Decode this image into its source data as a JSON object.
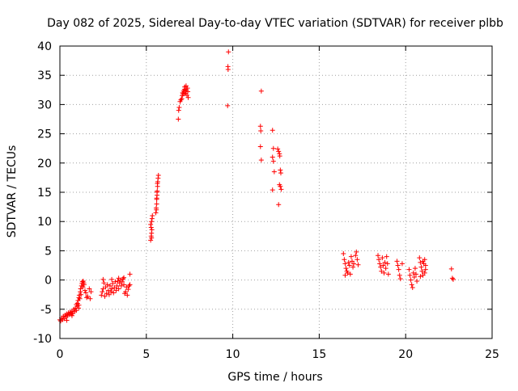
{
  "chart_data": {
    "type": "scatter",
    "title": "Day 082 of 2025, Sidereal Day-to-day VTEC variation (SDTVAR) for receiver plbb",
    "xlabel": "GPS time / hours",
    "ylabel": "SDTVAR / TECUs",
    "xlim": [
      0,
      25
    ],
    "ylim": [
      -10,
      40
    ],
    "xticks": [
      0,
      5,
      10,
      15,
      20,
      25
    ],
    "yticks": [
      -10,
      -5,
      0,
      5,
      10,
      15,
      20,
      25,
      30,
      35,
      40
    ],
    "xtick_labels": [
      "0",
      "5",
      "10",
      "15",
      "20",
      "25"
    ],
    "ytick_labels": [
      "-10",
      "-5",
      "0",
      "5",
      "10",
      "15",
      "20",
      "25",
      "30",
      "35",
      "40"
    ],
    "grid": true,
    "marker": "+",
    "colors": {
      "marker": "#ff0000",
      "grid": "#a0a0a0",
      "axis": "#000000",
      "background": "#ffffff"
    },
    "series": [
      {
        "name": "SDTVAR plbb",
        "points": [
          [
            0.0,
            -6.8
          ],
          [
            0.05,
            -7.0
          ],
          [
            0.1,
            -6.5
          ],
          [
            0.15,
            -6.8
          ],
          [
            0.2,
            -6.2
          ],
          [
            0.25,
            -6.6
          ],
          [
            0.3,
            -6.0
          ],
          [
            0.35,
            -6.3
          ],
          [
            0.4,
            -5.8
          ],
          [
            0.45,
            -6.1
          ],
          [
            0.5,
            -5.6
          ],
          [
            0.55,
            -5.9
          ],
          [
            0.6,
            -5.5
          ],
          [
            0.65,
            -5.8
          ],
          [
            0.7,
            -5.3
          ],
          [
            0.75,
            -5.7
          ],
          [
            0.8,
            -5.0
          ],
          [
            0.85,
            -5.4
          ],
          [
            0.9,
            -4.8
          ],
          [
            0.95,
            -5.2
          ],
          [
            1.0,
            -4.5
          ],
          [
            1.02,
            -4.0
          ],
          [
            1.05,
            -3.5
          ],
          [
            1.08,
            -4.8
          ],
          [
            1.1,
            -3.0
          ],
          [
            1.12,
            -2.6
          ],
          [
            1.15,
            -3.2
          ],
          [
            1.18,
            -2.0
          ],
          [
            1.2,
            -1.5
          ],
          [
            1.22,
            -2.5
          ],
          [
            1.25,
            -1.0
          ],
          [
            1.28,
            -0.6
          ],
          [
            1.3,
            -0.3
          ],
          [
            1.33,
            -1.2
          ],
          [
            1.35,
            -0.2
          ],
          [
            1.38,
            -0.5
          ],
          [
            1.4,
            -0.8
          ],
          [
            1.45,
            -1.8
          ],
          [
            1.5,
            -2.2
          ],
          [
            1.55,
            -3.0
          ],
          [
            1.6,
            -2.8
          ],
          [
            1.7,
            -1.5
          ],
          [
            1.75,
            -3.2
          ],
          [
            1.8,
            -2.0
          ],
          [
            0.4,
            -6.9
          ],
          [
            0.7,
            -6.1
          ],
          [
            0.95,
            -4.2
          ],
          [
            1.1,
            -4.3
          ],
          [
            2.4,
            -2.6
          ],
          [
            2.45,
            -2.0
          ],
          [
            2.5,
            -1.5
          ],
          [
            2.55,
            -0.5
          ],
          [
            2.6,
            -2.8
          ],
          [
            2.65,
            -1.2
          ],
          [
            2.7,
            -2.3
          ],
          [
            2.75,
            -0.8
          ],
          [
            2.8,
            -1.8
          ],
          [
            2.85,
            -2.5
          ],
          [
            2.9,
            -1.0
          ],
          [
            2.95,
            -2.0
          ],
          [
            3.0,
            -1.5
          ],
          [
            3.05,
            -0.6
          ],
          [
            3.1,
            -2.2
          ],
          [
            3.15,
            -1.3
          ],
          [
            3.2,
            -0.3
          ],
          [
            3.25,
            -1.8
          ],
          [
            3.3,
            -1.0
          ],
          [
            3.35,
            -0.2
          ],
          [
            3.4,
            -1.5
          ],
          [
            3.45,
            -0.5
          ],
          [
            3.5,
            0.0
          ],
          [
            3.55,
            -1.0
          ],
          [
            3.6,
            -0.3
          ],
          [
            3.65,
            0.2
          ],
          [
            3.7,
            -0.8
          ],
          [
            3.75,
            -2.3
          ],
          [
            3.8,
            -2.0
          ],
          [
            3.85,
            -1.2
          ],
          [
            3.9,
            -2.6
          ],
          [
            3.95,
            -1.6
          ],
          [
            4.0,
            -1.0
          ],
          [
            4.05,
            -0.8
          ],
          [
            2.5,
            0.1
          ],
          [
            3.0,
            0.1
          ],
          [
            3.4,
            0.3
          ],
          [
            3.7,
            0.4
          ],
          [
            4.05,
            1.0
          ],
          [
            5.25,
            6.8
          ],
          [
            5.28,
            7.5
          ],
          [
            5.3,
            8.0
          ],
          [
            5.32,
            8.6
          ],
          [
            5.25,
            9.5
          ],
          [
            5.3,
            10.0
          ],
          [
            5.33,
            10.5
          ],
          [
            5.35,
            11.0
          ],
          [
            5.28,
            9.0
          ],
          [
            5.3,
            7.2
          ],
          [
            5.55,
            11.5
          ],
          [
            5.57,
            12.3
          ],
          [
            5.6,
            13.0
          ],
          [
            5.6,
            13.8
          ],
          [
            5.62,
            14.5
          ],
          [
            5.63,
            15.2
          ],
          [
            5.65,
            16.0
          ],
          [
            5.66,
            16.8
          ],
          [
            5.68,
            17.4
          ],
          [
            5.7,
            17.9
          ],
          [
            5.58,
            12.0
          ],
          [
            5.6,
            14.0
          ],
          [
            5.62,
            15.0
          ],
          [
            5.64,
            16.5
          ],
          [
            6.85,
            27.5
          ],
          [
            6.87,
            29.0
          ],
          [
            6.9,
            29.5
          ],
          [
            6.95,
            30.5
          ],
          [
            7.0,
            30.8
          ],
          [
            7.05,
            31.0
          ],
          [
            7.08,
            31.5
          ],
          [
            7.1,
            32.0
          ],
          [
            7.12,
            31.8
          ],
          [
            7.15,
            32.3
          ],
          [
            7.18,
            32.0
          ],
          [
            7.2,
            32.6
          ],
          [
            7.22,
            33.0
          ],
          [
            7.25,
            32.4
          ],
          [
            7.28,
            31.9
          ],
          [
            7.3,
            33.2
          ],
          [
            7.32,
            32.5
          ],
          [
            7.35,
            31.6
          ],
          [
            7.38,
            32.8
          ],
          [
            7.4,
            32.2
          ],
          [
            7.42,
            31.2
          ],
          [
            9.75,
            39.0
          ],
          [
            9.72,
            36.5
          ],
          [
            9.73,
            36.0
          ],
          [
            9.7,
            29.8
          ],
          [
            11.65,
            32.3
          ],
          [
            11.6,
            26.3
          ],
          [
            11.62,
            25.5
          ],
          [
            11.6,
            22.8
          ],
          [
            11.65,
            20.5
          ],
          [
            12.3,
            25.6
          ],
          [
            12.35,
            22.5
          ],
          [
            12.3,
            21.0
          ],
          [
            12.35,
            20.3
          ],
          [
            12.4,
            18.5
          ],
          [
            12.3,
            15.4
          ],
          [
            12.6,
            22.4
          ],
          [
            12.65,
            22.0
          ],
          [
            12.7,
            21.6
          ],
          [
            12.72,
            21.2
          ],
          [
            12.75,
            18.8
          ],
          [
            12.78,
            18.3
          ],
          [
            12.7,
            16.3
          ],
          [
            12.75,
            16.0
          ],
          [
            12.8,
            15.5
          ],
          [
            12.65,
            12.9
          ],
          [
            16.4,
            4.5
          ],
          [
            16.45,
            3.5
          ],
          [
            16.5,
            2.8
          ],
          [
            16.55,
            2.0
          ],
          [
            16.6,
            1.5
          ],
          [
            16.65,
            1.2
          ],
          [
            16.7,
            3.0
          ],
          [
            16.75,
            2.5
          ],
          [
            16.8,
            1.0
          ],
          [
            16.85,
            4.0
          ],
          [
            16.9,
            3.2
          ],
          [
            16.95,
            2.2
          ],
          [
            17.0,
            2.8
          ],
          [
            17.1,
            4.2
          ],
          [
            17.15,
            4.8
          ],
          [
            17.2,
            3.5
          ],
          [
            17.25,
            2.6
          ],
          [
            16.5,
            0.8
          ],
          [
            18.4,
            4.2
          ],
          [
            18.45,
            3.5
          ],
          [
            18.5,
            2.8
          ],
          [
            18.55,
            2.2
          ],
          [
            18.6,
            1.5
          ],
          [
            18.65,
            3.8
          ],
          [
            18.7,
            2.5
          ],
          [
            18.75,
            1.2
          ],
          [
            18.8,
            3.0
          ],
          [
            18.85,
            2.0
          ],
          [
            18.9,
            4.0
          ],
          [
            18.95,
            2.8
          ],
          [
            19.0,
            1.0
          ],
          [
            19.5,
            3.2
          ],
          [
            19.55,
            2.5
          ],
          [
            19.6,
            1.8
          ],
          [
            19.65,
            0.8
          ],
          [
            19.7,
            0.2
          ],
          [
            19.8,
            2.8
          ],
          [
            20.2,
            1.8
          ],
          [
            20.25,
            0.8
          ],
          [
            20.3,
            0.0
          ],
          [
            20.35,
            -0.8
          ],
          [
            20.4,
            -1.3
          ],
          [
            20.45,
            1.2
          ],
          [
            20.5,
            0.5
          ],
          [
            20.55,
            2.0
          ],
          [
            20.6,
            1.0
          ],
          [
            20.65,
            -0.2
          ],
          [
            20.8,
            3.8
          ],
          [
            20.85,
            3.0
          ],
          [
            20.9,
            2.2
          ],
          [
            20.95,
            1.5
          ],
          [
            21.0,
            0.8
          ],
          [
            21.05,
            2.8
          ],
          [
            21.1,
            3.5
          ],
          [
            21.15,
            1.8
          ],
          [
            20.85,
            0.6
          ],
          [
            21.0,
            3.2
          ],
          [
            21.1,
            1.2
          ],
          [
            21.15,
            2.5
          ],
          [
            22.65,
            1.9
          ],
          [
            22.7,
            0.3
          ],
          [
            22.75,
            0.1
          ]
        ]
      }
    ]
  }
}
